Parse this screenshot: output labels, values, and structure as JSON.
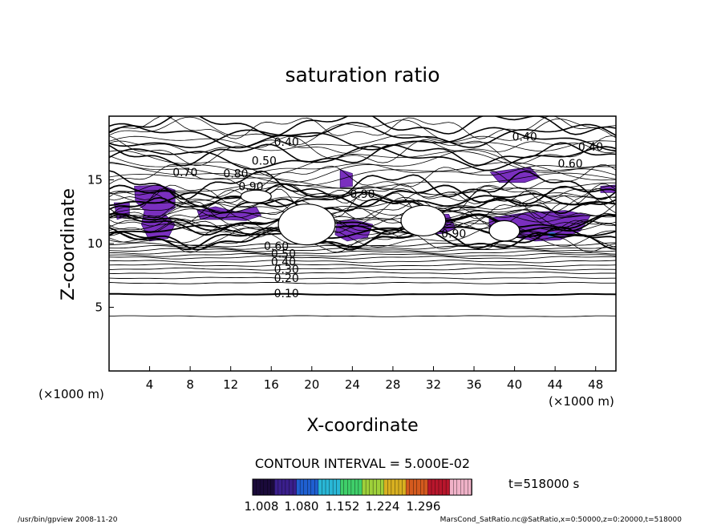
{
  "chart_data": {
    "type": "contour",
    "title": "saturation ratio",
    "xlabel": "X-coordinate",
    "ylabel": "Z-coordinate",
    "x_unit": "(×1000 m)",
    "y_unit": "(×1000 m)",
    "xlim": [
      0,
      50
    ],
    "ylim": [
      0,
      20
    ],
    "x_ticks": [
      4,
      8,
      12,
      16,
      20,
      24,
      28,
      32,
      36,
      40,
      44,
      48
    ],
    "y_ticks": [
      5,
      10,
      15
    ],
    "grid": false,
    "contour_interval_text": "CONTOUR INTERVAL = 5.000E-02",
    "time_text": "t=518000 s",
    "colorbar": {
      "ticks": [
        "1.008",
        "1.080",
        "1.152",
        "1.224",
        "1.296"
      ],
      "colors": [
        "#1a0a3a",
        "#3a1f8c",
        "#1f5fd0",
        "#29b7d6",
        "#3fcf6a",
        "#9ed03a",
        "#d8b020",
        "#d45a1e",
        "#b8162c",
        "#f0b2c8"
      ]
    },
    "contour_labels": [
      {
        "text": "0.10",
        "x": 17.5,
        "y": 6.1
      },
      {
        "text": "0.20",
        "x": 17.5,
        "y": 7.3
      },
      {
        "text": "0.30",
        "x": 17.5,
        "y": 8.0
      },
      {
        "text": "0.40",
        "x": 17.2,
        "y": 8.6
      },
      {
        "text": "0.50",
        "x": 17.2,
        "y": 9.2
      },
      {
        "text": "0.60",
        "x": 16.5,
        "y": 9.8
      },
      {
        "text": "0.40",
        "x": 17.5,
        "y": 18.0
      },
      {
        "text": "0.50",
        "x": 15.3,
        "y": 16.5
      },
      {
        "text": "0.70",
        "x": 7.5,
        "y": 15.6
      },
      {
        "text": "0.80",
        "x": 12.5,
        "y": 15.5
      },
      {
        "text": "0.90",
        "x": 14.0,
        "y": 14.5
      },
      {
        "text": "0.40",
        "x": 41.0,
        "y": 18.4
      },
      {
        "text": "0.40",
        "x": 47.5,
        "y": 17.6
      },
      {
        "text": "0.60",
        "x": 45.5,
        "y": 16.3
      },
      {
        "text": "0.90",
        "x": 25.0,
        "y": 13.9
      },
      {
        "text": "0.90",
        "x": 34.0,
        "y": 10.8
      }
    ],
    "supersaturated_regions_note": "purple shaded regions where saturation ratio > 1.0",
    "footer_left": "/usr/bin/gpview   2008-11-20",
    "footer_right": "MarsCond_SatRatio.nc@SatRatio,x=0:50000,z=0:20000,t=518000"
  }
}
